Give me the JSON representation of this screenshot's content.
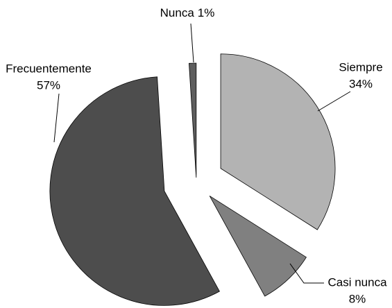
{
  "chart_data": {
    "type": "pie",
    "categories": [
      "Siempre",
      "Casi nunca",
      "Frecuentemente",
      "Nunca"
    ],
    "values": [
      34,
      8,
      57,
      1
    ],
    "value_labels": [
      "34%",
      "8%",
      "57%",
      "1%"
    ],
    "colors": [
      "#b3b3b3",
      "#808080",
      "#4d4d4d",
      "#5e5e5e"
    ]
  }
}
